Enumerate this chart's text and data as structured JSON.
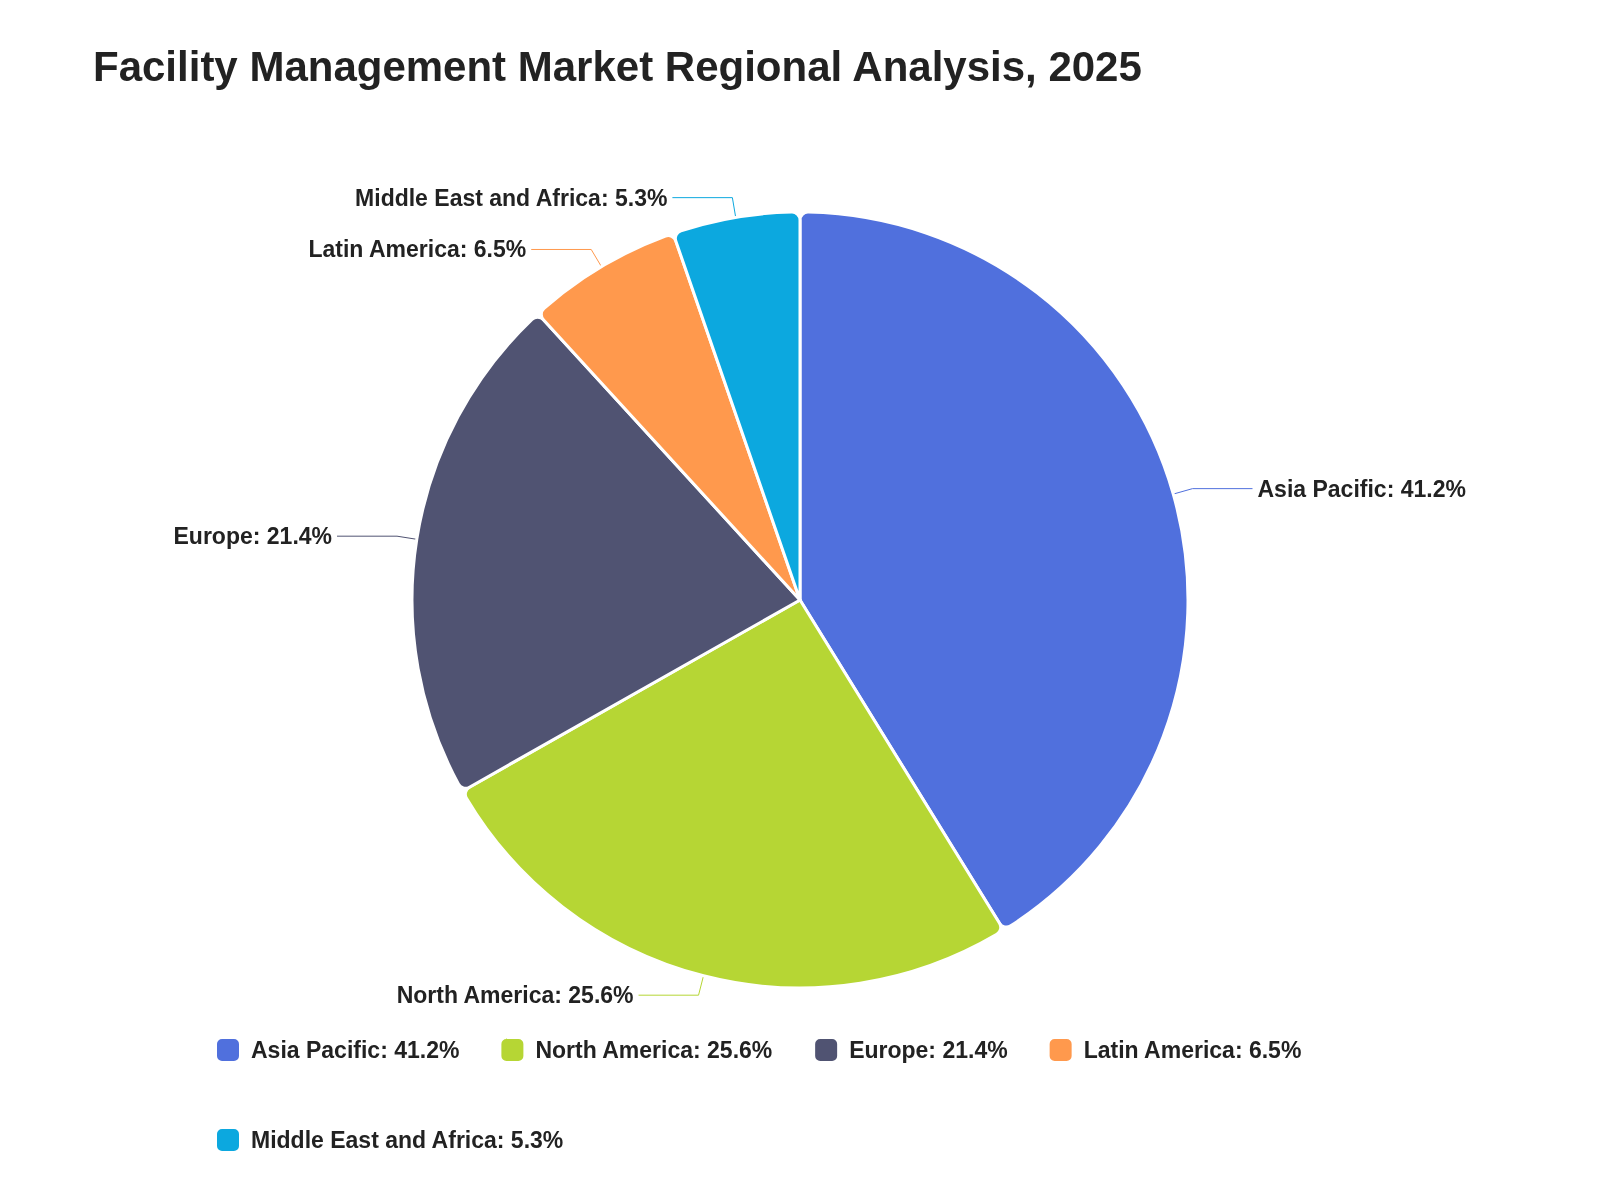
{
  "chart_data": {
    "type": "pie",
    "title": "Facility Management Market Regional Analysis, 2025",
    "categories": [
      "Asia Pacific",
      "North America",
      "Europe",
      "Latin America",
      "Middle East and Africa"
    ],
    "values": [
      41.2,
      25.6,
      21.4,
      6.5,
      5.3
    ],
    "value_labels": [
      "41.2%",
      "25.6%",
      "21.4%",
      "6.5%",
      "5.3%"
    ],
    "colors": [
      "#5070dd",
      "#b6d634",
      "#505372",
      "#ff994d",
      "#0ca8df"
    ],
    "legend": "bottom"
  }
}
